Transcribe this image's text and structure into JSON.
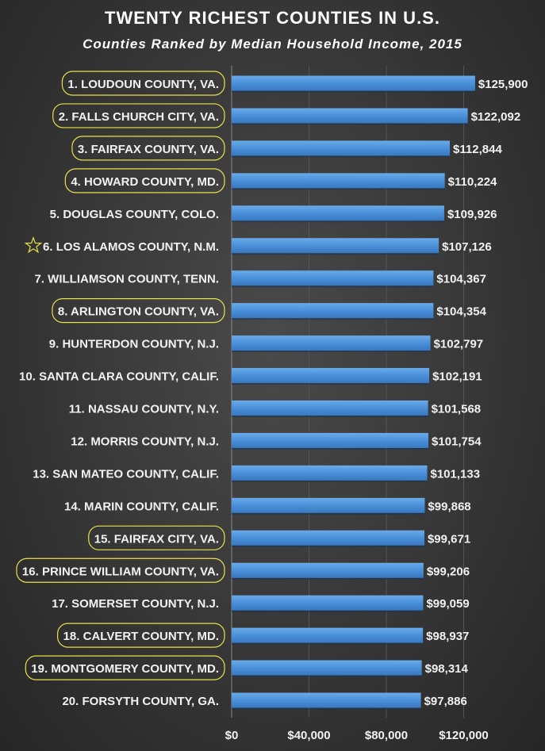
{
  "chart_data": {
    "type": "bar",
    "orientation": "horizontal",
    "title": "TWENTY RICHEST COUNTIES IN U.S.",
    "subtitle": "Counties Ranked by Median Household Income, 2015",
    "categories": [
      "1. LOUDOUN COUNTY, VA.",
      "2. FALLS CHURCH CITY, VA.",
      "3. FAIRFAX COUNTY, VA.",
      "4. HOWARD COUNTY, MD.",
      "5. DOUGLAS COUNTY, COLO.",
      "6. LOS ALAMOS COUNTY, N.M.",
      "7. WILLIAMSON COUNTY, TENN.",
      "8. ARLINGTON COUNTY, VA.",
      "9. HUNTERDON COUNTY, N.J.",
      "10. SANTA CLARA COUNTY, CALIF.",
      "11. NASSAU COUNTY, N.Y.",
      "12. MORRIS COUNTY, N.J.",
      "13. SAN MATEO COUNTY, CALIF.",
      "14. MARIN COUNTY, CALIF.",
      "15. FAIRFAX CITY, VA.",
      "16. PRINCE WILLIAM COUNTY, VA.",
      "17. SOMERSET COUNTY, N.J.",
      "18. CALVERT COUNTY, MD.",
      "19. MONTGOMERY COUNTY, MD.",
      "20. FORSYTH COUNTY, GA."
    ],
    "values": [
      125900,
      122092,
      112844,
      110224,
      109926,
      107126,
      104367,
      104354,
      102797,
      102191,
      101568,
      101754,
      101133,
      99868,
      99671,
      99206,
      99059,
      98937,
      98314,
      97886
    ],
    "value_labels": [
      "$125,900",
      "$122,092",
      "$112,844",
      "$110,224",
      "$109,926",
      "$107,126",
      "$104,367",
      "$104,354",
      "$102,797",
      "$102,191",
      "$101,568",
      "$101,754",
      "$101,133",
      "$99,868",
      "$99,671",
      "$99,206",
      "$99,059",
      "$98,937",
      "$98,314",
      "$97,886"
    ],
    "highlighted": [
      true,
      true,
      true,
      true,
      false,
      false,
      false,
      true,
      false,
      false,
      false,
      false,
      false,
      false,
      true,
      true,
      false,
      true,
      true,
      false
    ],
    "starred": [
      false,
      false,
      false,
      false,
      false,
      true,
      false,
      false,
      false,
      false,
      false,
      false,
      false,
      false,
      false,
      false,
      false,
      false,
      false,
      false
    ],
    "xticks": [
      0,
      40000,
      80000,
      120000
    ],
    "xtick_labels": [
      "$0",
      "$40,000",
      "$80,000",
      "$120,000"
    ],
    "xlim": [
      0,
      160000
    ],
    "grid": true,
    "bar_color": "#4a90d9",
    "highlight_color": "#e8e24a",
    "xlabel": "",
    "ylabel": ""
  }
}
